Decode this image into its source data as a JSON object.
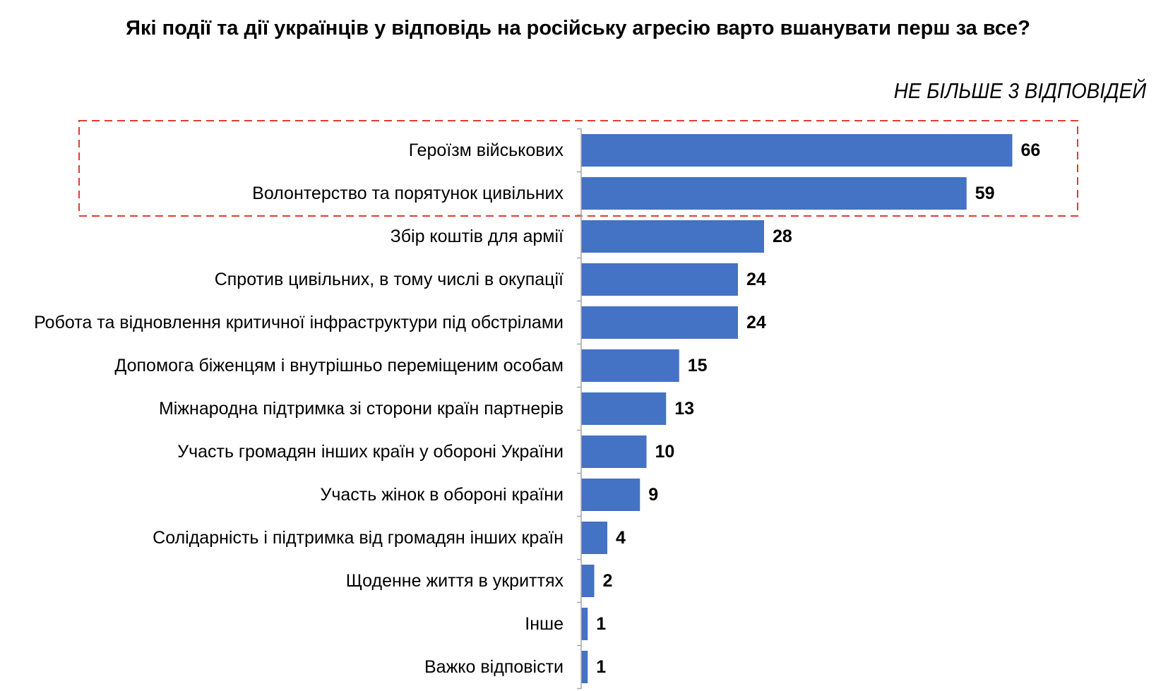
{
  "chart_data": {
    "type": "bar",
    "orientation": "horizontal",
    "title": "Які події та дії українців у відповідь на російську агресію варто вшанувати перш за все?",
    "subtitle": "НЕ БІЛЬШЕ 3 ВІДПОВІДЕЙ",
    "categories": [
      "Героїзм військових",
      "Волонтерство та порятунок цивільних",
      "Збір коштів для армії",
      "Спротив цивільних, в тому числі в окупації",
      "Робота та відновлення критичної інфраструктури під обстрілами",
      "Допомога біженцям і внутрішньо переміщеним особам",
      "Міжнародна підтримка зі сторони країн партнерів",
      "Участь громадян інших країн у обороні України",
      "Участь жінок в обороні країни",
      "Солідарність і підтримка від громадян інших країн",
      "Щоденне життя в укриттях",
      "Інше",
      "Важко відповісти"
    ],
    "values": [
      66,
      59,
      28,
      24,
      24,
      15,
      13,
      10,
      9,
      4,
      2,
      1,
      1
    ],
    "value_labels": [
      "66",
      "59",
      "28",
      "24",
      "24",
      "15",
      "13",
      "10",
      "9",
      "4",
      "2",
      "1",
      "1"
    ],
    "highlighted_categories": [
      "Героїзм військових",
      "Волонтерство та порятунок цивільних"
    ],
    "xlim": [
      0,
      66
    ],
    "grid": false,
    "legend": "none",
    "bar_color": "#4472C4",
    "highlight_box_color": "#E03C31",
    "axis_color": "#A6A6A6"
  }
}
